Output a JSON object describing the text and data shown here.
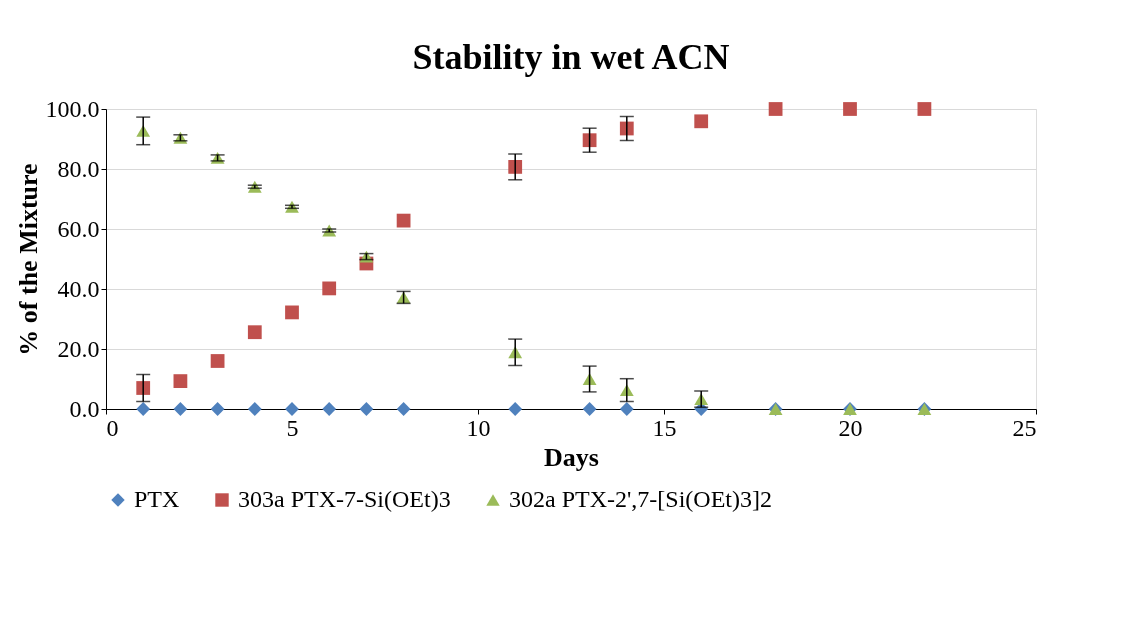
{
  "chart_data": {
    "type": "scatter",
    "title": "Stability in wet ACN",
    "xlabel": "Days",
    "ylabel": "% of the Mixture",
    "x": [
      1,
      2,
      3,
      4,
      5,
      6,
      7,
      8,
      11,
      13,
      14,
      16,
      18,
      20,
      22
    ],
    "series": [
      {
        "name": "PTX",
        "color": "#4f81bd",
        "marker": "diamond",
        "values": [
          0,
          0,
          0,
          0,
          0,
          0,
          0,
          0,
          0,
          0,
          0,
          0,
          0,
          0,
          0
        ]
      },
      {
        "name": "303a PTX-7-Si(OEt)3",
        "color": "#c0504d",
        "marker": "square",
        "values": [
          7.0,
          9.3,
          16.0,
          25.6,
          32.2,
          40.2,
          48.5,
          62.8,
          80.7,
          89.6,
          93.5,
          95.9,
          100,
          100,
          100
        ],
        "errors": [
          4.5,
          null,
          null,
          null,
          null,
          null,
          null,
          null,
          4.3,
          4.0,
          4.0,
          null,
          null,
          null,
          null
        ]
      },
      {
        "name": "302a PTX-2',7-[Si(OEt)3]2",
        "color": "#9bbb59",
        "marker": "triangle",
        "values": [
          92.7,
          90.4,
          83.7,
          74.1,
          67.4,
          59.5,
          50.8,
          37.2,
          18.9,
          10.0,
          6.3,
          3.3,
          0,
          0,
          0
        ],
        "errors": [
          4.6,
          1.0,
          1.0,
          0.5,
          0.5,
          0.5,
          1.0,
          2.0,
          4.4,
          4.3,
          3.8,
          2.7,
          null,
          null,
          null
        ]
      }
    ],
    "xlim": [
      0,
      25
    ],
    "xticks": [
      0,
      5,
      10,
      15,
      20,
      25
    ],
    "ylim": [
      0,
      100
    ],
    "yticks": [
      {
        "value": 0,
        "label": "0.0"
      },
      {
        "value": 20,
        "label": "20.0"
      },
      {
        "value": 40,
        "label": "40.0"
      },
      {
        "value": 60,
        "label": "60.0"
      },
      {
        "value": 80,
        "label": "80.0"
      },
      {
        "value": 100,
        "label": "100.0"
      }
    ],
    "grid": "y",
    "legend": "bottom"
  }
}
